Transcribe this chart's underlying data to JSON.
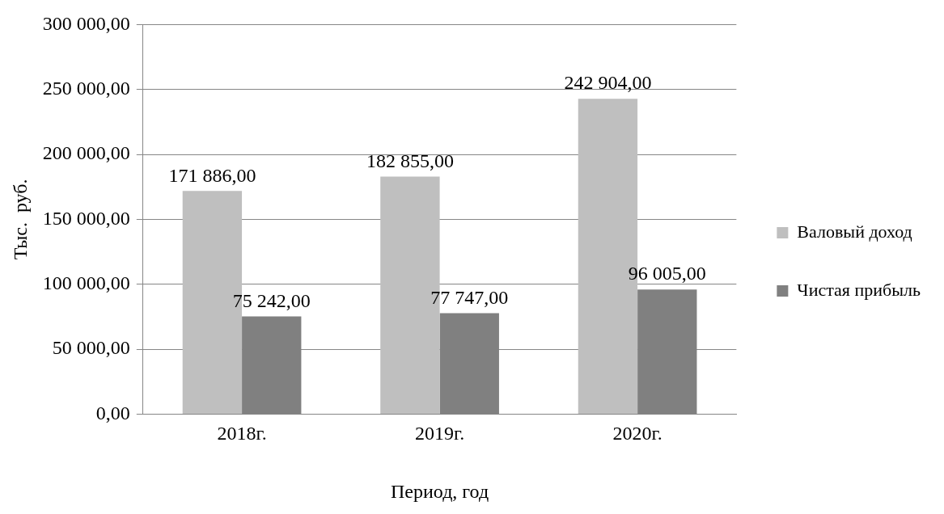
{
  "chart_data": {
    "type": "bar",
    "xlabel": "Период, год",
    "ylabel": "Тыс.  руб.",
    "categories": [
      "2018г.",
      "2019г.",
      "2020г."
    ],
    "series": [
      {
        "name": "Валовый доход",
        "color": "#bfbfbf",
        "values": [
          171886,
          182855,
          242904
        ],
        "value_labels": [
          "171 886,00",
          "182 855,00",
          "242 904,00"
        ]
      },
      {
        "name": "Чистая прибыль",
        "color": "#808080",
        "values": [
          75242,
          77747,
          96005
        ],
        "value_labels": [
          "75 242,00",
          "77 747,00",
          "96 005,00"
        ]
      }
    ],
    "ylim": [
      0,
      300000
    ],
    "yticks": [
      {
        "value": 0,
        "label": "0,00"
      },
      {
        "value": 50000,
        "label": "50 000,00"
      },
      {
        "value": 100000,
        "label": "100 000,00"
      },
      {
        "value": 150000,
        "label": "150 000,00"
      },
      {
        "value": 200000,
        "label": "200 000,00"
      },
      {
        "value": 250000,
        "label": "250 000,00"
      },
      {
        "value": 300000,
        "label": "300 000,00"
      }
    ],
    "grid": "y",
    "legend": "right"
  }
}
